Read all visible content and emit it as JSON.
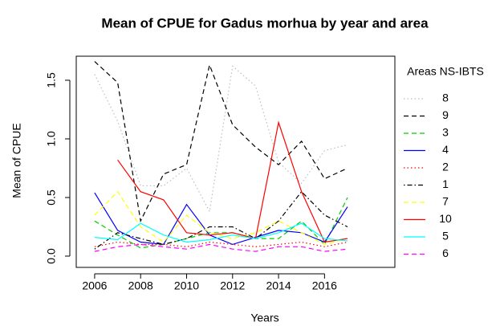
{
  "chart_data": {
    "type": "line",
    "title": "Mean of CPUE for Gadus morhua by year and area",
    "xlabel": "Years",
    "ylabel": "Mean of CPUE",
    "legend_title": "Areas NS-IBTS",
    "legend_position": "right",
    "x": [
      2006,
      2007,
      2008,
      2009,
      2010,
      2011,
      2012,
      2013,
      2014,
      2015,
      2016,
      2017
    ],
    "xlim": [
      2005.2,
      2019.06
    ],
    "xticks": [
      2006,
      2008,
      2010,
      2012,
      2014,
      2016
    ],
    "ylim": [
      -0.096,
      1.705
    ],
    "yticks": [
      {
        "value": 0,
        "label": "0.0"
      },
      0.5,
      {
        "value": 1,
        "label": "1.0"
      },
      1.5
    ],
    "series": [
      {
        "name": "8",
        "color": "#bebebe",
        "linestyle": "dotted",
        "values": [
          1.55,
          1.15,
          0.6,
          0.6,
          0.75,
          0.38,
          1.62,
          1.45,
          0.8,
          0.62,
          0.9,
          0.95
        ]
      },
      {
        "name": "9",
        "color": "#000000",
        "linestyle": "dashed",
        "values": [
          1.66,
          1.48,
          0.3,
          0.7,
          0.78,
          1.63,
          1.12,
          0.93,
          0.78,
          0.98,
          0.66,
          0.75
        ]
      },
      {
        "name": "3",
        "color": "#00cd00",
        "linestyle": "dashed",
        "values": [
          0.3,
          0.18,
          0.07,
          0.1,
          0.15,
          0.2,
          0.2,
          0.15,
          0.15,
          0.3,
          0.1,
          0.5
        ]
      },
      {
        "name": "4",
        "color": "#0000ff",
        "linestyle": "solid",
        "values": [
          0.54,
          0.22,
          0.12,
          0.1,
          0.44,
          0.18,
          0.1,
          0.16,
          0.22,
          0.2,
          0.12,
          0.42
        ]
      },
      {
        "name": "2",
        "color": "#ff0000",
        "linestyle": "dotted",
        "values": [
          0.08,
          0.12,
          0.1,
          0.1,
          0.08,
          0.12,
          0.1,
          0.08,
          0.1,
          0.12,
          0.08,
          0.12
        ]
      },
      {
        "name": "1",
        "color": "#000000",
        "linestyle": "dotdash",
        "values": [
          0.06,
          0.2,
          0.15,
          0.1,
          0.15,
          0.25,
          0.25,
          0.15,
          0.3,
          0.55,
          0.35,
          0.25
        ]
      },
      {
        "name": "7",
        "color": "#ffff00",
        "linestyle": "dashed",
        "values": [
          0.35,
          0.55,
          0.25,
          0.12,
          0.35,
          0.2,
          0.15,
          0.2,
          0.3,
          0.2,
          0.1,
          0.15
        ]
      },
      {
        "name": "10",
        "color": "#ff0000",
        "linestyle": "solid",
        "values": [
          null,
          0.82,
          0.55,
          0.48,
          0.2,
          0.18,
          0.2,
          0.15,
          1.14,
          0.55,
          0.12,
          0.15
        ]
      },
      {
        "name": "5",
        "color": "#00ffff",
        "linestyle": "solid",
        "values": [
          0.16,
          0.14,
          0.28,
          0.18,
          0.12,
          0.14,
          0.18,
          0.15,
          0.2,
          0.28,
          0.15,
          0.13
        ]
      },
      {
        "name": "6",
        "color": "#ff00ff",
        "linestyle": "dashed",
        "values": [
          0.04,
          0.08,
          0.1,
          0.08,
          0.06,
          0.1,
          0.06,
          0.04,
          0.08,
          0.08,
          0.04,
          0.06
        ]
      }
    ]
  }
}
